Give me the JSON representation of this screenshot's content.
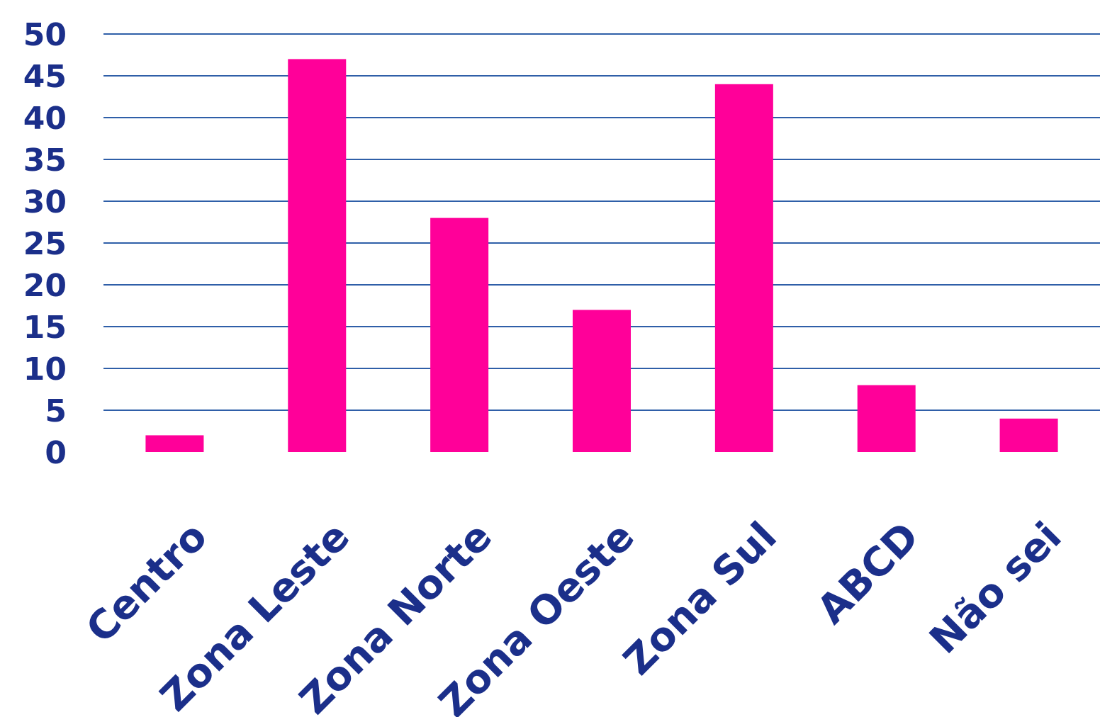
{
  "chart_data": {
    "type": "bar",
    "categories": [
      "Centro",
      "Zona Leste",
      "Zona Norte",
      "Zona Oeste",
      "Zona Sul",
      "ABCD",
      "Não sei"
    ],
    "values": [
      2,
      47,
      28,
      17,
      44,
      8,
      4
    ],
    "ylim": [
      0,
      50
    ],
    "yticks": [
      0,
      5,
      10,
      15,
      20,
      25,
      30,
      35,
      40,
      45,
      50
    ],
    "grid": true,
    "colors": {
      "bar": "#FF0099",
      "grid": "#2F5FA8",
      "text": "#1B2F8A"
    }
  }
}
